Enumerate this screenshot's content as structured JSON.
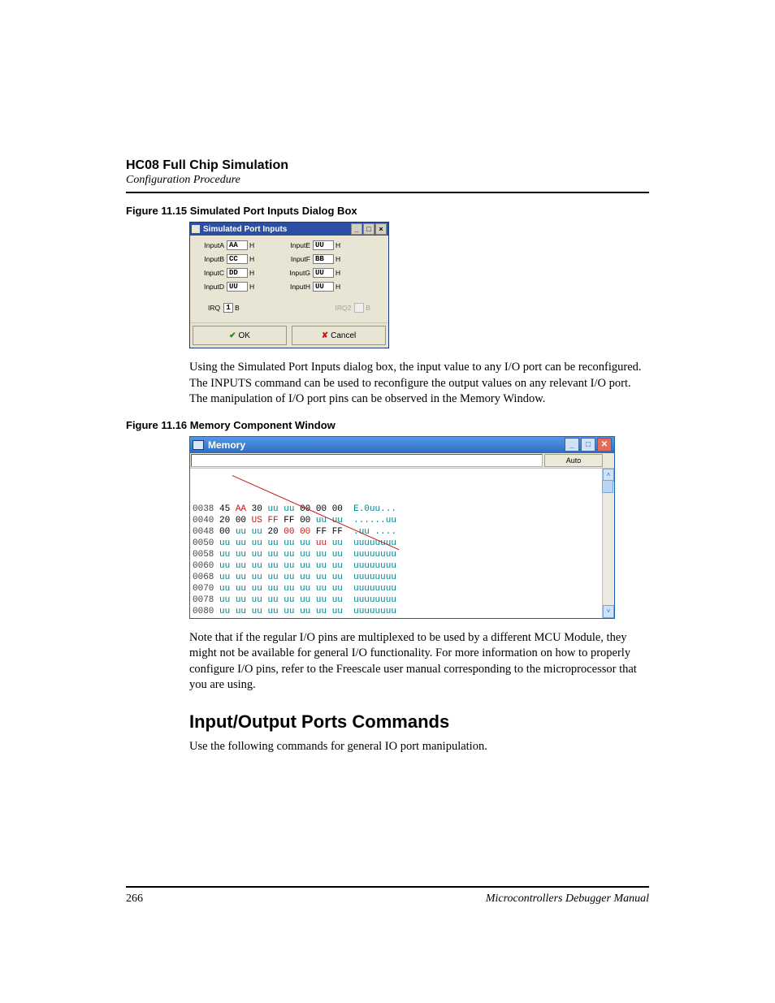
{
  "header": {
    "title": "HC08 Full Chip Simulation",
    "subtitle": "Configuration Procedure"
  },
  "fig1": {
    "caption": "Figure 11.15  Simulated Port Inputs Dialog Box",
    "dialog_title": "Simulated Port Inputs",
    "ports_left": [
      {
        "label": "InputA",
        "value": "AA",
        "suffix": "H"
      },
      {
        "label": "InputB",
        "value": "CC",
        "suffix": "H"
      },
      {
        "label": "InputC",
        "value": "DD",
        "suffix": "H"
      },
      {
        "label": "InputD",
        "value": "UU",
        "suffix": "H"
      }
    ],
    "ports_right": [
      {
        "label": "InputE",
        "value": "UU",
        "suffix": "H"
      },
      {
        "label": "InputF",
        "value": "BB",
        "suffix": "H"
      },
      {
        "label": "InputG",
        "value": "UU",
        "suffix": "H"
      },
      {
        "label": "InputH",
        "value": "UU",
        "suffix": "H"
      }
    ],
    "irq1": {
      "label": "IRQ",
      "value": "1",
      "suffix": "B"
    },
    "irq2": {
      "label": "IRQ2",
      "value": "",
      "suffix": "B"
    },
    "ok_label": "OK",
    "cancel_label": "Cancel"
  },
  "para1": "Using the Simulated Port Inputs dialog box, the input value to any I/O port can be reconfigured. The INPUTS command can be used to reconfigure the output values on any relevant I/O port. The manipulation of I/O port pins can be observed in the Memory Window.",
  "fig2": {
    "caption": "Figure 11.16  Memory Component Window",
    "dialog_title": "Memory",
    "mode": "Auto",
    "hex_rows": [
      {
        "addr": "0038",
        "bytes": [
          "45",
          "AA",
          "30",
          "uu",
          "uu",
          "00",
          "00",
          "00"
        ],
        "styles": [
          "b",
          "r",
          "b",
          "u",
          "u",
          "b",
          "b",
          "b"
        ],
        "ascii": "E.0uu..."
      },
      {
        "addr": "0040",
        "bytes": [
          "20",
          "00",
          "US",
          "FF",
          "FF",
          "00",
          "uu",
          "uu"
        ],
        "styles": [
          "b",
          "b",
          "r",
          "r",
          "b",
          "b",
          "u",
          "u"
        ],
        "ascii": "......uu"
      },
      {
        "addr": "0048",
        "bytes": [
          "00",
          "uu",
          "uu",
          "20",
          "00",
          "00",
          "FF",
          "FF"
        ],
        "styles": [
          "b",
          "u",
          "u",
          "b",
          "r",
          "r",
          "b",
          "b"
        ],
        "ascii": ".uu ...."
      },
      {
        "addr": "0050",
        "bytes": [
          "uu",
          "uu",
          "uu",
          "uu",
          "uu",
          "uu",
          "uu",
          "uu"
        ],
        "styles": [
          "u",
          "u",
          "u",
          "u",
          "u",
          "u",
          "r",
          "u"
        ],
        "ascii": "uuuuuuuu"
      },
      {
        "addr": "0058",
        "bytes": [
          "uu",
          "uu",
          "uu",
          "uu",
          "uu",
          "uu",
          "uu",
          "uu"
        ],
        "styles": [
          "u",
          "u",
          "u",
          "u",
          "u",
          "u",
          "u",
          "u"
        ],
        "ascii": "uuuuuuuu"
      },
      {
        "addr": "0060",
        "bytes": [
          "uu",
          "uu",
          "uu",
          "uu",
          "uu",
          "uu",
          "uu",
          "uu"
        ],
        "styles": [
          "u",
          "u",
          "u",
          "u",
          "u",
          "u",
          "u",
          "u"
        ],
        "ascii": "uuuuuuuu"
      },
      {
        "addr": "0068",
        "bytes": [
          "uu",
          "uu",
          "uu",
          "uu",
          "uu",
          "uu",
          "uu",
          "uu"
        ],
        "styles": [
          "u",
          "u",
          "u",
          "u",
          "u",
          "u",
          "u",
          "u"
        ],
        "ascii": "uuuuuuuu"
      },
      {
        "addr": "0070",
        "bytes": [
          "uu",
          "uu",
          "uu",
          "uu",
          "uu",
          "uu",
          "uu",
          "uu"
        ],
        "styles": [
          "u",
          "u",
          "u",
          "u",
          "u",
          "u",
          "u",
          "u"
        ],
        "ascii": "uuuuuuuu"
      },
      {
        "addr": "0078",
        "bytes": [
          "uu",
          "uu",
          "uu",
          "uu",
          "uu",
          "uu",
          "uu",
          "uu"
        ],
        "styles": [
          "u",
          "u",
          "u",
          "u",
          "u",
          "u",
          "u",
          "u"
        ],
        "ascii": "uuuuuuuu"
      },
      {
        "addr": "0080",
        "bytes": [
          "uu",
          "uu",
          "uu",
          "uu",
          "uu",
          "uu",
          "uu",
          "uu"
        ],
        "styles": [
          "u",
          "u",
          "u",
          "u",
          "u",
          "u",
          "u",
          "u"
        ],
        "ascii": "uuuuuuuu"
      }
    ]
  },
  "para2": "Note that if the regular I/O pins are multiplexed to be used by a different MCU Module, they might not be available for general I/O functionality. For more information on how to properly configure I/O pins, refer to the Freescale user manual corresponding to the microprocessor that you are using.",
  "section": {
    "heading": "Input/Output Ports Commands",
    "text": "Use the following commands for general IO port manipulation."
  },
  "footer": {
    "page": "266",
    "manual": "Microcontrollers Debugger Manual"
  }
}
